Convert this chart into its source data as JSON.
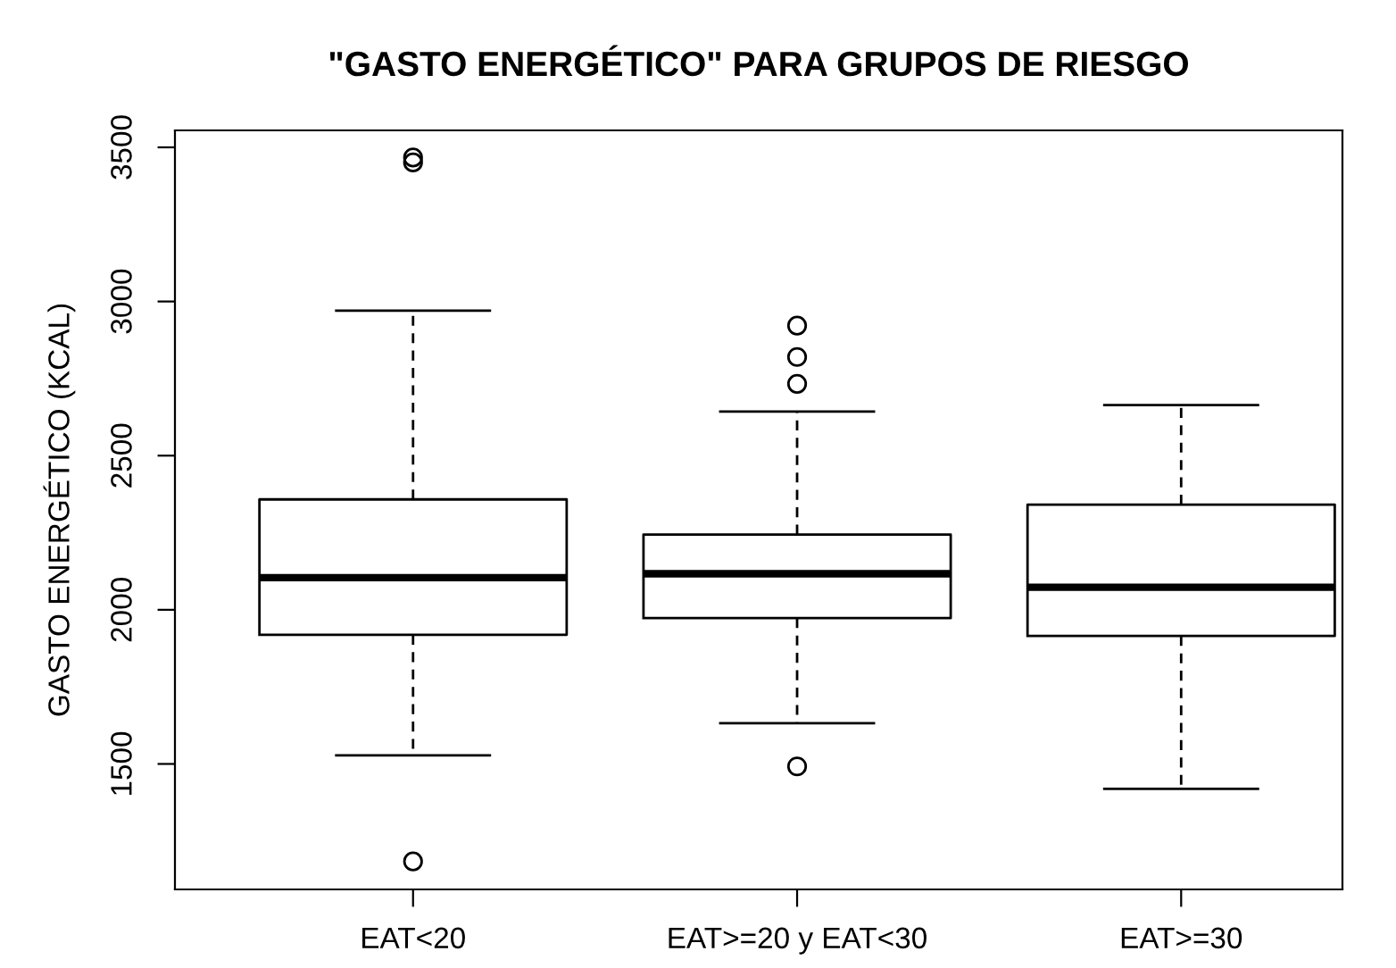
{
  "chart_data": {
    "type": "box",
    "title": "\"GASTO ENERGÉTICO\" PARA GRUPOS DE RIESGO",
    "ylabel": "GASTO ENERGÉTICO (KCAL)",
    "categories": [
      "EAT<20",
      "EAT>=20 y EAT<30",
      "EAT>=30"
    ],
    "boxes": [
      {
        "low": 1528,
        "q1": 1919,
        "median": 2104,
        "q3": 2358,
        "high": 2970,
        "outliers": [
          1184,
          3451,
          3467
        ]
      },
      {
        "low": 1632,
        "q1": 1973,
        "median": 2117,
        "q3": 2244,
        "high": 2643,
        "outliers": [
          1492,
          2733,
          2820,
          2922
        ]
      },
      {
        "low": 1419,
        "q1": 1915,
        "median": 2073,
        "q3": 2341,
        "high": 2664
      }
    ],
    "ylim": [
      1093,
      3555
    ],
    "yticks": [
      1500,
      2000,
      2500,
      3000,
      3500
    ],
    "grid": false,
    "legend": false,
    "marker": "circle"
  }
}
